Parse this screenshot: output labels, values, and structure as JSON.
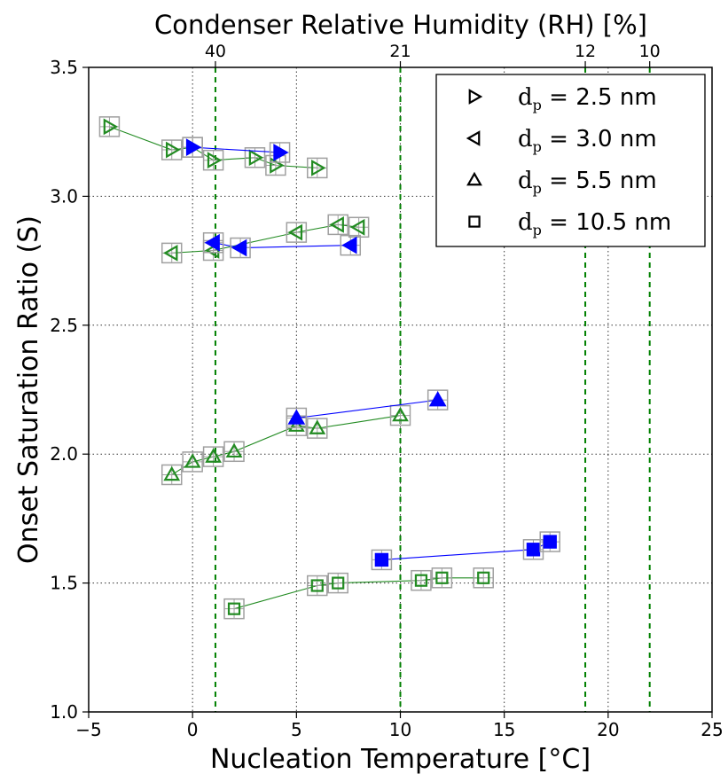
{
  "chart_data": {
    "type": "scatter",
    "xlabel": "Nucleation Temperature [°C]",
    "ylabel": "Onset Saturation Ratio (S)",
    "top_axis_label": "Condenser Relative Humidity (RH) [%]",
    "xlim": [
      -5,
      25
    ],
    "ylim": [
      1.0,
      3.5
    ],
    "x_ticks": [
      -5,
      0,
      5,
      10,
      15,
      20,
      25
    ],
    "x_tick_labels": [
      "−5",
      "0",
      "5",
      "10",
      "15",
      "20",
      "25"
    ],
    "y_ticks": [
      1.0,
      1.5,
      2.0,
      2.5,
      3.0,
      3.5
    ],
    "y_tick_labels": [
      "1.0",
      "1.5",
      "2.0",
      "2.5",
      "3.0",
      "3.5"
    ],
    "grid": true,
    "legend_position": "top-right",
    "top_axis_ticks": [
      {
        "x": 1.1,
        "label": "40"
      },
      {
        "x": 10.0,
        "label": "21"
      },
      {
        "x": 18.9,
        "label": "12"
      },
      {
        "x": 22.0,
        "label": "10"
      }
    ],
    "legend": [
      {
        "marker": "triangle-right",
        "label": "d",
        "subscript": "p",
        "value": " = 2.5 nm"
      },
      {
        "marker": "triangle-left",
        "label": "d",
        "subscript": "p",
        "value": " = 3.0 nm"
      },
      {
        "marker": "triangle-up",
        "label": "d",
        "subscript": "p",
        "value": " = 5.5 nm"
      },
      {
        "marker": "square",
        "label": "d",
        "subscript": "p",
        "value": " = 10.5 nm"
      }
    ],
    "colors": {
      "open": "#228b22",
      "filled": "#0000ff",
      "error_box": "#a0a0a0",
      "reference_line": "#008000"
    },
    "series": [
      {
        "name": "dp = 2.5 nm",
        "marker": "triangle-right",
        "style": "open",
        "x": [
          -4,
          -1,
          0,
          1,
          3,
          4,
          6
        ],
        "y": [
          3.27,
          3.18,
          3.19,
          3.14,
          3.15,
          3.12,
          3.11
        ]
      },
      {
        "name": "dp = 2.5 nm",
        "marker": "triangle-right",
        "style": "filled",
        "x": [
          0,
          4.2
        ],
        "y": [
          3.19,
          3.17
        ]
      },
      {
        "name": "dp = 3.0 nm",
        "marker": "triangle-left",
        "style": "open",
        "x": [
          -1,
          1,
          5,
          7,
          8
        ],
        "y": [
          2.78,
          2.79,
          2.86,
          2.89,
          2.88
        ]
      },
      {
        "name": "dp = 3.0 nm",
        "marker": "triangle-left",
        "style": "filled",
        "x": [
          1,
          2.3,
          7.6
        ],
        "y": [
          2.82,
          2.8,
          2.81
        ]
      },
      {
        "name": "dp = 5.5 nm",
        "marker": "triangle-up",
        "style": "open",
        "x": [
          -1,
          0,
          1,
          2,
          5,
          6,
          10
        ],
        "y": [
          1.92,
          1.97,
          1.99,
          2.01,
          2.11,
          2.1,
          2.15
        ]
      },
      {
        "name": "dp = 5.5 nm",
        "marker": "triangle-up",
        "style": "filled",
        "x": [
          5,
          11.8
        ],
        "y": [
          2.14,
          2.21
        ]
      },
      {
        "name": "dp = 10.5 nm",
        "marker": "square",
        "style": "open",
        "x": [
          2,
          6,
          7,
          11,
          12,
          14
        ],
        "y": [
          1.4,
          1.49,
          1.5,
          1.51,
          1.52,
          1.52
        ]
      },
      {
        "name": "dp = 10.5 nm",
        "marker": "square",
        "style": "filled",
        "x": [
          9.1,
          16.4,
          17.2
        ],
        "y": [
          1.59,
          1.63,
          1.66
        ]
      }
    ]
  }
}
